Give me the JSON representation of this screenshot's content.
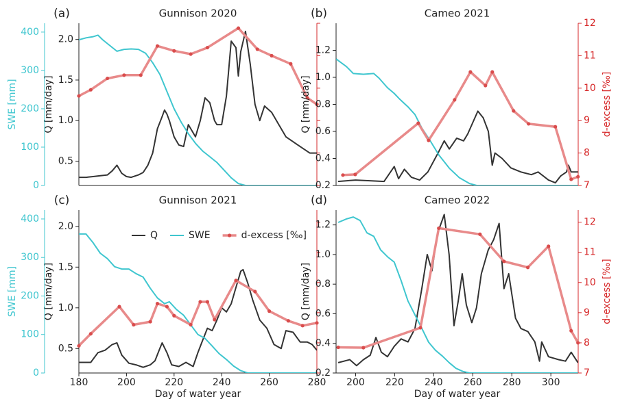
{
  "chart_data": [
    {
      "type": "line",
      "panel_label": "(a)",
      "title": "Gunnison 2020",
      "ylabel": "Q [mm/day]",
      "swe_label": "SWE [mm]",
      "xlim": [
        180,
        280
      ],
      "ylim": [
        0.2,
        2.2
      ],
      "yticks": [
        0.5,
        {
          "value": 1.0,
          "label": "1.0"
        },
        1.5,
        {
          "value": 2.0,
          "label": "2.0"
        }
      ],
      "swelim": [
        0,
        423
      ],
      "sweticks": [
        0,
        100,
        200,
        300,
        400
      ],
      "y2lim": [
        7,
        12
      ],
      "y2ticks": [
        7,
        8,
        9,
        10,
        11,
        12
      ],
      "y2ticklabels": false,
      "series": [
        {
          "color": "#333333",
          "axis": "y",
          "x": [
            180,
            183,
            186,
            189,
            192,
            194,
            196,
            198,
            200,
            202,
            205,
            207,
            209,
            211,
            213,
            215,
            216,
            217,
            218,
            220,
            222,
            224,
            226,
            228,
            229,
            231,
            233,
            235,
            237,
            238,
            240,
            242,
            244,
            246,
            247,
            248,
            250,
            252,
            254,
            256,
            258,
            261,
            264,
            267,
            272,
            277,
            280
          ],
          "values": [
            0.3,
            0.3,
            0.31,
            0.32,
            0.33,
            0.38,
            0.45,
            0.35,
            0.31,
            0.3,
            0.33,
            0.36,
            0.45,
            0.6,
            0.9,
            1.05,
            1.13,
            1.08,
            1.0,
            0.8,
            0.7,
            0.68,
            0.95,
            0.85,
            0.8,
            1.0,
            1.28,
            1.22,
            1.0,
            0.95,
            0.95,
            1.3,
            1.98,
            1.9,
            1.55,
            1.85,
            2.1,
            1.7,
            1.2,
            1.0,
            1.18,
            1.1,
            0.95,
            0.8,
            0.7,
            0.6,
            0.6
          ]
        },
        {
          "color": "#3fc6cf",
          "axis": "swe",
          "x": [
            180,
            183,
            186,
            188,
            190,
            193,
            196,
            199,
            202,
            205,
            208,
            211,
            214,
            217,
            220,
            223,
            226,
            229,
            232,
            235,
            238,
            241,
            244,
            247,
            250,
            260,
            270,
            280
          ],
          "values": [
            380,
            385,
            388,
            392,
            380,
            365,
            350,
            355,
            356,
            355,
            345,
            320,
            290,
            245,
            200,
            165,
            135,
            110,
            90,
            75,
            60,
            40,
            20,
            5,
            0,
            0,
            0,
            0
          ]
        },
        {
          "color": "#e88a8a",
          "marker_color": "#d94c4c",
          "axis": "y2",
          "markers": true,
          "x": [
            180,
            185,
            192,
            199,
            206,
            213,
            220,
            227,
            234,
            247,
            255,
            261,
            269,
            276,
            280
          ],
          "values": [
            9.76,
            9.95,
            10.3,
            10.4,
            10.4,
            11.3,
            11.15,
            11.05,
            11.25,
            11.85,
            11.2,
            11.0,
            10.75,
            9.7,
            9.5
          ]
        }
      ]
    },
    {
      "type": "line",
      "panel_label": "(b)",
      "title": "Cameo 2021",
      "ylabel": "Q [mm/day]",
      "y2label": "d-excess [‰]",
      "xlim": [
        190,
        314
      ],
      "ylim": [
        0.2,
        1.4
      ],
      "yticks": [
        0.2,
        0.4,
        0.6,
        0.8,
        {
          "value": 1.0,
          "label": "1.0"
        },
        1.2
      ],
      "swelim": [
        0,
        423
      ],
      "y2lim": [
        7,
        12
      ],
      "y2ticks": [
        7,
        8,
        9,
        10,
        11,
        12
      ],
      "series": [
        {
          "color": "#333333",
          "axis": "y",
          "x": [
            191,
            200,
            214.6,
            219.8,
            222,
            225,
            228.6,
            232.8,
            237,
            242.6,
            245.4,
            248,
            251.8,
            255.3,
            257.4,
            262.6,
            265.4,
            268,
            270,
            271.4,
            275,
            279.5,
            284.7,
            290,
            293.5,
            298.8,
            302.3,
            305,
            308,
            309,
            310.4,
            313.9
          ],
          "values": [
            0.23,
            0.24,
            0.23,
            0.34,
            0.25,
            0.32,
            0.26,
            0.24,
            0.3,
            0.45,
            0.53,
            0.47,
            0.55,
            0.53,
            0.58,
            0.75,
            0.7,
            0.6,
            0.35,
            0.44,
            0.4,
            0.33,
            0.3,
            0.28,
            0.3,
            0.24,
            0.22,
            0.27,
            0.3,
            0.35,
            0.3,
            0.3
          ]
        },
        {
          "color": "#3fc6cf",
          "axis": "swe",
          "x": [
            190,
            195.3,
            198.8,
            204,
            209.3,
            212,
            216.3,
            219.8,
            222.6,
            226.8,
            230.4,
            233.9,
            238.4,
            242.6,
            248,
            253.2,
            258.4,
            262,
            313.9
          ],
          "values": [
            330,
            310,
            292,
            290,
            292,
            280,
            255,
            240,
            225,
            205,
            185,
            150,
            115,
            80,
            45,
            20,
            5,
            0,
            0
          ]
        },
        {
          "color": "#e88a8a",
          "marker_color": "#d94c4c",
          "axis": "y2",
          "markers": true,
          "x": [
            193.5,
            199.8,
            232.1,
            237.4,
            250.7,
            258.8,
            266.5,
            270,
            280.9,
            288.6,
            302.3,
            310.4,
            313.9
          ],
          "values": [
            7.32,
            7.34,
            8.92,
            8.39,
            9.64,
            10.5,
            10.08,
            10.5,
            9.3,
            8.9,
            8.81,
            7.19,
            7.27
          ]
        }
      ]
    },
    {
      "type": "line",
      "panel_label": "(c)",
      "title": "Gunnison 2021",
      "ylabel": "Q [mm/day]",
      "swe_label": "SWE [mm]",
      "xlabel": "Day of water year",
      "xlim": [
        180,
        280
      ],
      "xticks": [
        180,
        200,
        220,
        240,
        260,
        280
      ],
      "ylim": [
        0.2,
        2.2
      ],
      "yticks": [
        0.5,
        {
          "value": 1.0,
          "label": "1.0"
        },
        1.5,
        {
          "value": 2.0,
          "label": "2.0"
        }
      ],
      "swelim": [
        0,
        423
      ],
      "sweticks": [
        0,
        100,
        200,
        300,
        400
      ],
      "y2lim": [
        7,
        12.4
      ],
      "y2ticks": [
        7,
        8,
        9,
        10,
        11,
        12
      ],
      "y2ticklabels": false,
      "legend": "upper right",
      "series": [
        {
          "name": "Q",
          "color": "#333333",
          "axis": "y",
          "x": [
            180,
            185,
            188,
            191,
            194,
            196,
            198,
            201,
            204,
            207,
            210,
            212,
            214,
            215,
            217,
            219,
            222,
            225,
            228,
            230,
            232,
            234,
            236,
            238,
            240,
            242,
            244,
            246,
            248,
            249,
            251,
            253,
            256,
            259,
            262,
            265,
            267,
            270,
            273,
            276,
            278,
            280
          ],
          "values": [
            0.33,
            0.33,
            0.45,
            0.48,
            0.55,
            0.57,
            0.42,
            0.32,
            0.3,
            0.27,
            0.3,
            0.35,
            0.5,
            0.57,
            0.45,
            0.3,
            0.28,
            0.33,
            0.28,
            0.45,
            0.6,
            0.75,
            0.72,
            0.85,
            1.0,
            0.95,
            1.05,
            1.25,
            1.45,
            1.47,
            1.3,
            1.1,
            0.85,
            0.75,
            0.55,
            0.5,
            0.72,
            0.7,
            0.58,
            0.58,
            0.55,
            0.48
          ]
        },
        {
          "name": "SWE",
          "color": "#3fc6cf",
          "axis": "swe",
          "x": [
            180,
            183,
            186,
            189,
            192,
            195,
            198,
            201,
            204,
            207,
            210,
            213,
            216,
            218,
            221,
            224,
            227,
            230,
            233,
            236,
            239,
            242,
            245,
            248,
            251,
            280
          ],
          "values": [
            361,
            361,
            338,
            311,
            297,
            276,
            270,
            270,
            258,
            249,
            220,
            195,
            180,
            185,
            165,
            150,
            125,
            100,
            90,
            70,
            50,
            35,
            18,
            6,
            0,
            0
          ]
        },
        {
          "name": "d-excess [‰]",
          "color": "#e88a8a",
          "marker_color": "#d94c4c",
          "axis": "y2",
          "markers": true,
          "x": [
            180,
            185,
            197,
            203,
            210,
            213,
            217,
            220,
            227,
            231,
            234,
            237,
            246,
            254,
            260,
            268,
            274,
            280
          ],
          "values": [
            7.9,
            8.3,
            9.2,
            8.6,
            8.7,
            9.3,
            9.2,
            8.9,
            8.6,
            9.36,
            9.36,
            8.77,
            10.07,
            9.7,
            9.05,
            8.73,
            8.57,
            8.66
          ]
        }
      ]
    },
    {
      "type": "line",
      "panel_label": "(d)",
      "title": "Cameo 2022",
      "ylabel": "Q [mm/day]",
      "y2label": "d-excess [‰]",
      "xlabel": "Day of water year",
      "xlim": [
        190,
        314
      ],
      "xticks": [
        200,
        220,
        240,
        260,
        280,
        300
      ],
      "ylim": [
        0.2,
        1.3
      ],
      "yticks": [
        0.2,
        0.4,
        0.6,
        0.8,
        {
          "value": 1.0,
          "label": "1.0"
        },
        1.2
      ],
      "swelim": [
        0,
        423
      ],
      "y2lim": [
        7,
        12.4
      ],
      "y2ticks": [
        7,
        8,
        9,
        10,
        11,
        12
      ],
      "series": [
        {
          "color": "#333333",
          "axis": "y",
          "x": [
            191.1,
            197,
            200.5,
            204,
            207.5,
            210.4,
            213.2,
            216.3,
            219.8,
            223.3,
            226.8,
            230.4,
            233.9,
            236.7,
            239.1,
            241.9,
            245.4,
            247.9,
            250.4,
            252.5,
            254.6,
            256.7,
            259.5,
            261.9,
            264.4,
            267.9,
            270.7,
            273.5,
            276,
            278.4,
            281.9,
            284.7,
            288.2,
            291.8,
            294.2,
            295.3,
            298.8,
            304,
            307.5,
            310.4,
            313.9
          ],
          "values": [
            0.27,
            0.29,
            0.25,
            0.29,
            0.32,
            0.44,
            0.34,
            0.31,
            0.38,
            0.43,
            0.41,
            0.5,
            0.77,
            1.0,
            0.89,
            1.14,
            1.27,
            1.0,
            0.52,
            0.68,
            0.87,
            0.66,
            0.54,
            0.64,
            0.87,
            1.03,
            1.1,
            1.21,
            0.77,
            0.87,
            0.57,
            0.5,
            0.48,
            0.41,
            0.28,
            0.41,
            0.31,
            0.29,
            0.28,
            0.34,
            0.27
          ]
        },
        {
          "color": "#3fc6cf",
          "axis": "swe",
          "x": [
            191.1,
            195.3,
            198.8,
            202.3,
            205.8,
            209.3,
            212.8,
            216.3,
            219.8,
            223.3,
            226.8,
            230.4,
            233.9,
            237.4,
            240.9,
            244.4,
            247.9,
            251.4,
            254.9,
            258.4,
            313.9
          ],
          "values": [
            391,
            400,
            405,
            396,
            364,
            355,
            320,
            302,
            288,
            240,
            187,
            151,
            116,
            80,
            59,
            44,
            27,
            12,
            4,
            0,
            0
          ]
        },
        {
          "color": "#e88a8a",
          "marker_color": "#d94c4c",
          "axis": "y2",
          "markers": true,
          "x": [
            191.1,
            204,
            233.2,
            242.6,
            263.7,
            276,
            288.2,
            298.8,
            310.4,
            313.9
          ],
          "values": [
            7.85,
            7.84,
            8.5,
            11.8,
            11.6,
            10.7,
            10.5,
            11.2,
            8.4,
            8.0
          ]
        }
      ]
    }
  ]
}
